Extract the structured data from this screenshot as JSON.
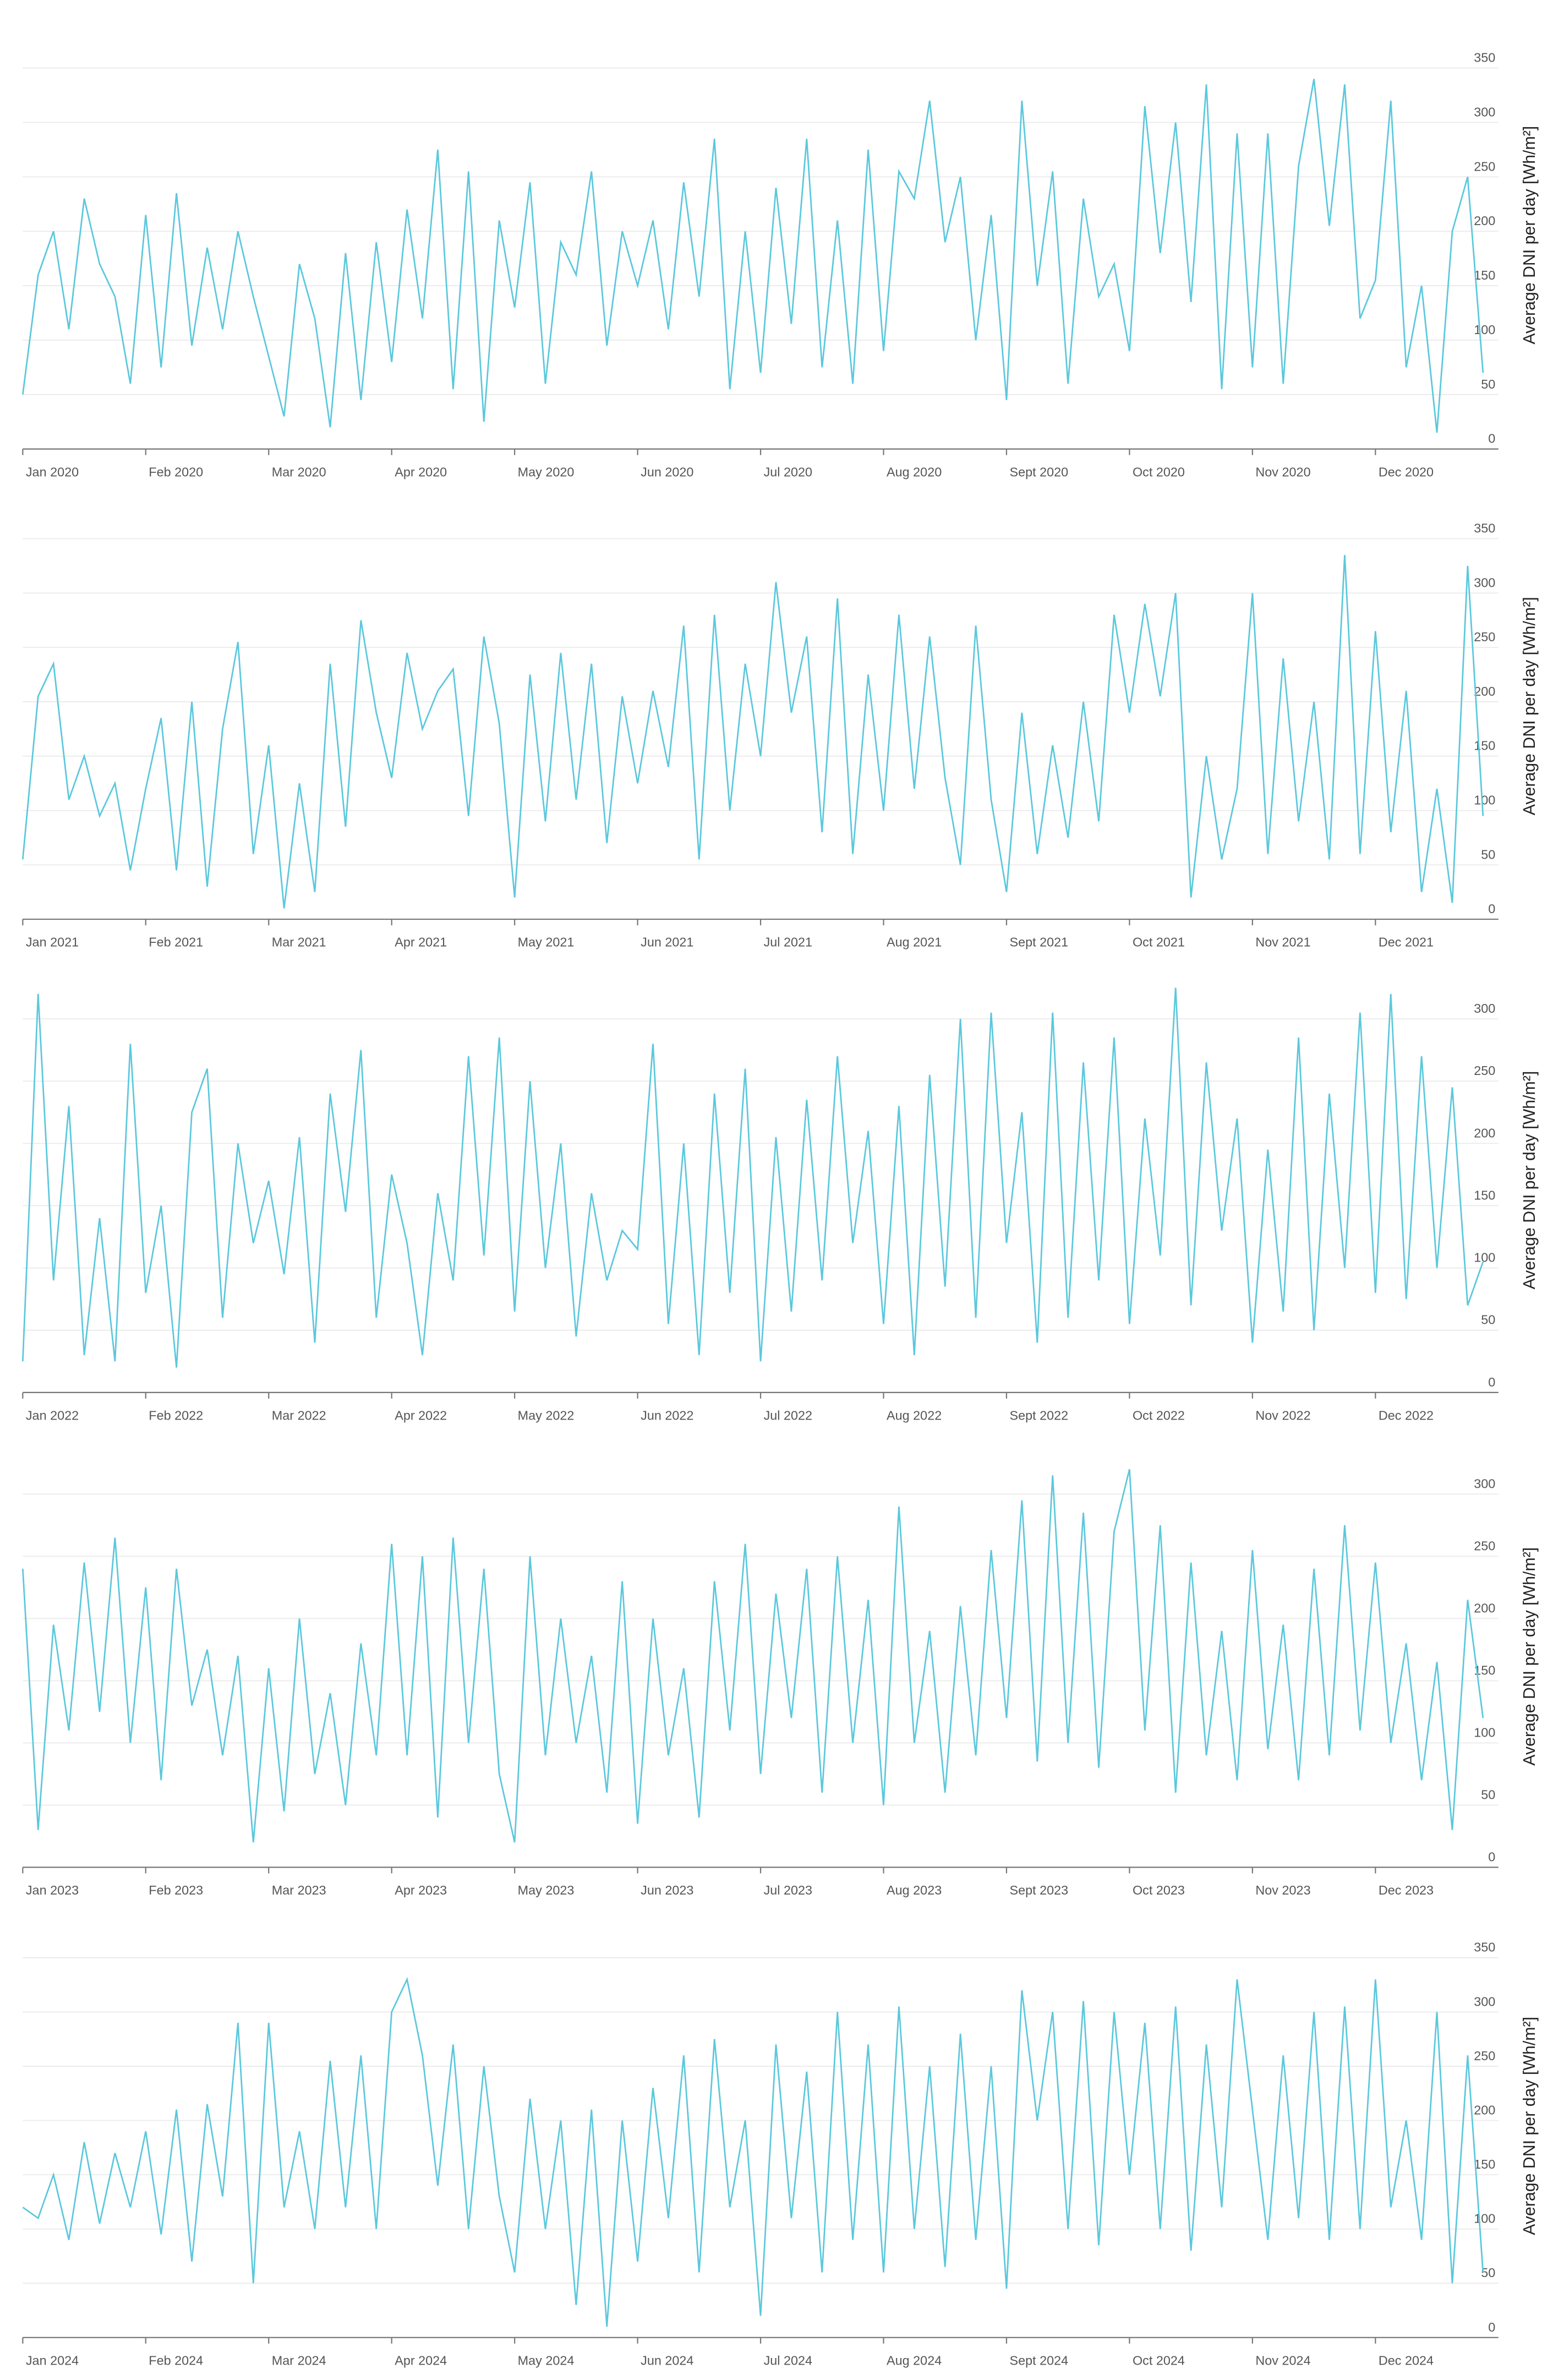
{
  "chart_data": [
    {
      "type": "line",
      "y_label": "Average DNI per day [Wh/m²]",
      "color": "#5bc8dc",
      "grid": true,
      "ylim": [
        0,
        393
      ],
      "yticks": [
        0,
        50,
        100,
        150,
        200,
        250,
        300,
        350
      ],
      "categories": [
        "Jan 2020",
        null,
        null,
        null,
        null,
        null,
        null,
        null,
        "Feb 2020",
        null,
        null,
        null,
        null,
        null,
        null,
        null,
        "Mar 2020",
        null,
        null,
        null,
        null,
        null,
        null,
        null,
        "Apr 2020",
        null,
        null,
        null,
        null,
        null,
        null,
        null,
        "May 2020",
        null,
        null,
        null,
        null,
        null,
        null,
        null,
        "Jun 2020",
        null,
        null,
        null,
        null,
        null,
        null,
        null,
        "Jul 2020",
        null,
        null,
        null,
        null,
        null,
        null,
        null,
        "Aug 2020",
        null,
        null,
        null,
        null,
        null,
        null,
        null,
        "Sept 2020",
        null,
        null,
        null,
        null,
        null,
        null,
        null,
        "Oct 2020",
        null,
        null,
        null,
        null,
        null,
        null,
        null,
        "Nov 2020",
        null,
        null,
        null,
        null,
        null,
        null,
        null,
        "Dec 2020",
        null,
        null,
        null,
        null,
        null,
        null,
        null
      ],
      "values": [
        50,
        160,
        200,
        110,
        230,
        170,
        140,
        60,
        215,
        75,
        235,
        95,
        185,
        110,
        200,
        140,
        85,
        30,
        170,
        120,
        20,
        180,
        45,
        190,
        80,
        220,
        120,
        275,
        55,
        255,
        25,
        210,
        130,
        245,
        60,
        190,
        160,
        255,
        95,
        200,
        150,
        210,
        110,
        245,
        140,
        285,
        55,
        200,
        70,
        240,
        115,
        285,
        75,
        210,
        60,
        275,
        90,
        255,
        230,
        320,
        190,
        250,
        100,
        215,
        45,
        320,
        150,
        255,
        60,
        230,
        140,
        170,
        90,
        315,
        180,
        300,
        135,
        335,
        55,
        290,
        75,
        290,
        60,
        260,
        340,
        205,
        335,
        120,
        155,
        320,
        75,
        150,
        15,
        200,
        250,
        70
      ]
    },
    {
      "type": "line",
      "y_label": "Average DNI per day [Wh/m²]",
      "color": "#5bc8dc",
      "grid": true,
      "ylim": [
        0,
        392
      ],
      "yticks": [
        0,
        50,
        100,
        150,
        200,
        250,
        300,
        350
      ],
      "categories": [
        "Jan 2021",
        null,
        null,
        null,
        null,
        null,
        null,
        null,
        "Feb 2021",
        null,
        null,
        null,
        null,
        null,
        null,
        null,
        "Mar 2021",
        null,
        null,
        null,
        null,
        null,
        null,
        null,
        "Apr 2021",
        null,
        null,
        null,
        null,
        null,
        null,
        null,
        "May 2021",
        null,
        null,
        null,
        null,
        null,
        null,
        null,
        "Jun 2021",
        null,
        null,
        null,
        null,
        null,
        null,
        null,
        "Jul 2021",
        null,
        null,
        null,
        null,
        null,
        null,
        null,
        "Aug 2021",
        null,
        null,
        null,
        null,
        null,
        null,
        null,
        "Sept 2021",
        null,
        null,
        null,
        null,
        null,
        null,
        null,
        "Oct 2021",
        null,
        null,
        null,
        null,
        null,
        null,
        null,
        "Nov 2021",
        null,
        null,
        null,
        null,
        null,
        null,
        null,
        "Dec 2021",
        null,
        null,
        null,
        null,
        null,
        null,
        null
      ],
      "values": [
        55,
        205,
        235,
        110,
        150,
        95,
        125,
        45,
        120,
        185,
        45,
        200,
        30,
        175,
        255,
        60,
        160,
        10,
        125,
        25,
        235,
        85,
        275,
        190,
        130,
        245,
        175,
        210,
        230,
        95,
        260,
        180,
        20,
        225,
        90,
        245,
        110,
        235,
        70,
        205,
        125,
        210,
        140,
        270,
        55,
        280,
        100,
        235,
        150,
        310,
        190,
        260,
        80,
        295,
        60,
        225,
        100,
        280,
        120,
        260,
        130,
        50,
        270,
        110,
        25,
        190,
        60,
        160,
        75,
        200,
        90,
        280,
        190,
        290,
        205,
        300,
        20,
        150,
        55,
        120,
        300,
        60,
        240,
        90,
        200,
        55,
        335,
        60,
        265,
        80,
        210,
        25,
        120,
        15,
        325,
        95
      ]
    },
    {
      "type": "line",
      "y_label": "Average DNI per day [Wh/m²]",
      "color": "#5bc8dc",
      "grid": true,
      "ylim": [
        0,
        341
      ],
      "yticks": [
        0,
        50,
        100,
        150,
        200,
        250,
        300
      ],
      "categories": [
        "Jan 2022",
        null,
        null,
        null,
        null,
        null,
        null,
        null,
        "Feb 2022",
        null,
        null,
        null,
        null,
        null,
        null,
        null,
        "Mar 2022",
        null,
        null,
        null,
        null,
        null,
        null,
        null,
        "Apr 2022",
        null,
        null,
        null,
        null,
        null,
        null,
        null,
        "May 2022",
        null,
        null,
        null,
        null,
        null,
        null,
        null,
        "Jun 2022",
        null,
        null,
        null,
        null,
        null,
        null,
        null,
        "Jul 2022",
        null,
        null,
        null,
        null,
        null,
        null,
        null,
        "Aug 2022",
        null,
        null,
        null,
        null,
        null,
        null,
        null,
        "Sept 2022",
        null,
        null,
        null,
        null,
        null,
        null,
        null,
        "Oct 2022",
        null,
        null,
        null,
        null,
        null,
        null,
        null,
        "Nov 2022",
        null,
        null,
        null,
        null,
        null,
        null,
        null,
        "Dec 2022",
        null,
        null,
        null,
        null,
        null,
        null,
        null
      ],
      "values": [
        25,
        320,
        90,
        230,
        30,
        140,
        25,
        280,
        80,
        150,
        20,
        225,
        260,
        60,
        200,
        120,
        170,
        95,
        205,
        40,
        240,
        145,
        275,
        60,
        175,
        120,
        30,
        160,
        90,
        270,
        110,
        285,
        65,
        250,
        100,
        200,
        45,
        160,
        90,
        130,
        115,
        280,
        55,
        200,
        30,
        240,
        80,
        260,
        25,
        205,
        65,
        235,
        90,
        270,
        120,
        210,
        55,
        230,
        30,
        255,
        85,
        300,
        60,
        305,
        120,
        225,
        40,
        305,
        60,
        265,
        90,
        285,
        55,
        220,
        110,
        325,
        70,
        265,
        130,
        220,
        40,
        195,
        65,
        285,
        50,
        240,
        100,
        305,
        80,
        320,
        75,
        270,
        100,
        245,
        70,
        105
      ]
    },
    {
      "type": "line",
      "y_label": "Average DNI per day [Wh/m²]",
      "color": "#5bc8dc",
      "grid": true,
      "ylim": [
        0,
        339
      ],
      "yticks": [
        0,
        50,
        100,
        150,
        200,
        250,
        300
      ],
      "categories": [
        "Jan 2023",
        null,
        null,
        null,
        null,
        null,
        null,
        null,
        "Feb 2023",
        null,
        null,
        null,
        null,
        null,
        null,
        null,
        "Mar 2023",
        null,
        null,
        null,
        null,
        null,
        null,
        null,
        "Apr 2023",
        null,
        null,
        null,
        null,
        null,
        null,
        null,
        "May 2023",
        null,
        null,
        null,
        null,
        null,
        null,
        null,
        "Jun 2023",
        null,
        null,
        null,
        null,
        null,
        null,
        null,
        "Jul 2023",
        null,
        null,
        null,
        null,
        null,
        null,
        null,
        "Aug 2023",
        null,
        null,
        null,
        null,
        null,
        null,
        null,
        "Sept 2023",
        null,
        null,
        null,
        null,
        null,
        null,
        null,
        "Oct 2023",
        null,
        null,
        null,
        null,
        null,
        null,
        null,
        "Nov 2023",
        null,
        null,
        null,
        null,
        null,
        null,
        null,
        "Dec 2023",
        null,
        null,
        null,
        null,
        null,
        null,
        null
      ],
      "values": [
        240,
        30,
        195,
        110,
        245,
        125,
        265,
        100,
        225,
        70,
        240,
        130,
        175,
        90,
        170,
        20,
        160,
        45,
        200,
        75,
        140,
        50,
        180,
        90,
        260,
        90,
        250,
        40,
        265,
        100,
        240,
        75,
        20,
        250,
        90,
        200,
        100,
        170,
        60,
        230,
        35,
        200,
        90,
        160,
        40,
        230,
        110,
        260,
        75,
        220,
        120,
        240,
        60,
        250,
        100,
        215,
        50,
        290,
        100,
        190,
        60,
        210,
        90,
        255,
        120,
        295,
        85,
        315,
        100,
        285,
        80,
        270,
        320,
        110,
        275,
        60,
        245,
        90,
        190,
        70,
        255,
        95,
        195,
        70,
        240,
        90,
        275,
        110,
        245,
        100,
        180,
        70,
        165,
        30,
        215,
        120
      ]
    },
    {
      "type": "line",
      "y_label": "Average DNI per day [Wh/m²]",
      "color": "#5bc8dc",
      "grid": true,
      "ylim": [
        0,
        390
      ],
      "yticks": [
        0,
        50,
        100,
        150,
        200,
        250,
        300,
        350
      ],
      "categories": [
        "Jan 2024",
        null,
        null,
        null,
        null,
        null,
        null,
        null,
        "Feb 2024",
        null,
        null,
        null,
        null,
        null,
        null,
        null,
        "Mar 2024",
        null,
        null,
        null,
        null,
        null,
        null,
        null,
        "Apr 2024",
        null,
        null,
        null,
        null,
        null,
        null,
        null,
        "May 2024",
        null,
        null,
        null,
        null,
        null,
        null,
        null,
        "Jun 2024",
        null,
        null,
        null,
        null,
        null,
        null,
        null,
        "Jul 2024",
        null,
        null,
        null,
        null,
        null,
        null,
        null,
        "Aug 2024",
        null,
        null,
        null,
        null,
        null,
        null,
        null,
        "Sept 2024",
        null,
        null,
        null,
        null,
        null,
        null,
        null,
        "Oct 2024",
        null,
        null,
        null,
        null,
        null,
        null,
        null,
        "Nov 2024",
        null,
        null,
        null,
        null,
        null,
        null,
        null,
        "Dec 2024",
        null,
        null,
        null,
        null,
        null,
        null,
        null
      ],
      "values": [
        120,
        110,
        150,
        90,
        180,
        105,
        170,
        120,
        190,
        95,
        210,
        70,
        215,
        130,
        290,
        50,
        290,
        120,
        190,
        100,
        255,
        120,
        260,
        100,
        300,
        330,
        260,
        140,
        270,
        100,
        250,
        130,
        60,
        220,
        100,
        200,
        30,
        210,
        10,
        200,
        70,
        230,
        110,
        260,
        60,
        275,
        120,
        200,
        20,
        270,
        110,
        245,
        60,
        300,
        90,
        270,
        60,
        305,
        100,
        250,
        65,
        280,
        90,
        250,
        45,
        320,
        200,
        300,
        100,
        310,
        85,
        300,
        150,
        290,
        100,
        305,
        80,
        270,
        120,
        330,
        210,
        90,
        260,
        110,
        300,
        90,
        305,
        100,
        330,
        120,
        200,
        90,
        300,
        50,
        260,
        60
      ]
    }
  ]
}
